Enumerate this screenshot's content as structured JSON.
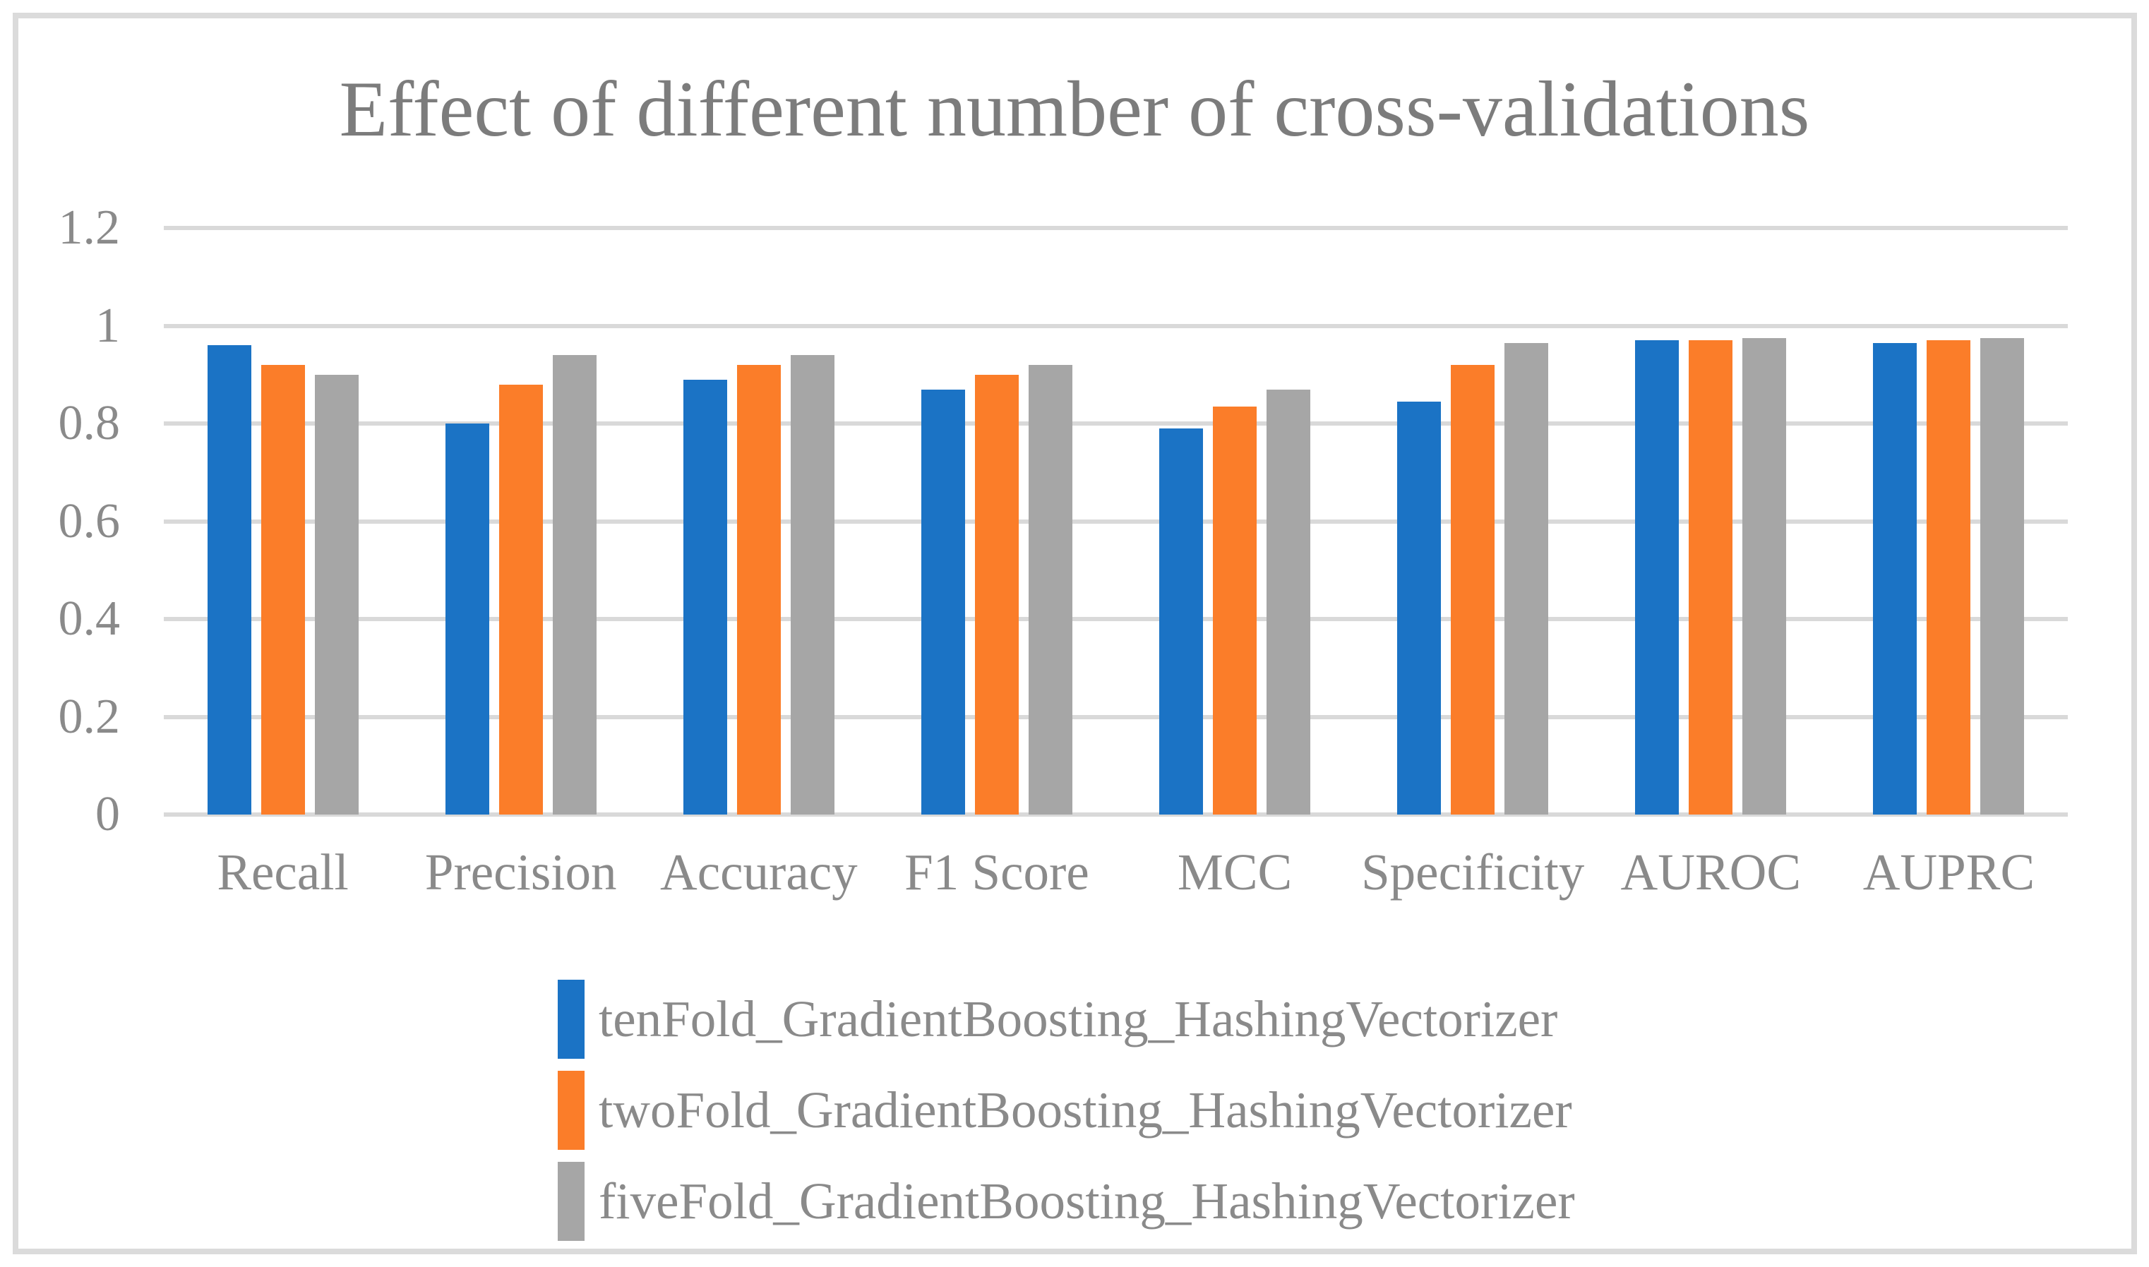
{
  "chart_data": {
    "type": "bar",
    "title": "Effect of different number of cross-validations",
    "categories": [
      "Recall",
      "Precision",
      "Accuracy",
      "F1 Score",
      "MCC",
      "Specificity",
      "AUROC",
      "AUPRC"
    ],
    "series": [
      {
        "name": "tenFold_GradientBoosting_HashingVectorizer",
        "color": "#1B73C5",
        "values": [
          0.96,
          0.8,
          0.89,
          0.87,
          0.79,
          0.845,
          0.97,
          0.965
        ]
      },
      {
        "name": "twoFold_GradientBoosting_HashingVectorizer",
        "color": "#FB7D29",
        "values": [
          0.92,
          0.88,
          0.92,
          0.9,
          0.835,
          0.92,
          0.97,
          0.97
        ]
      },
      {
        "name": "fiveFold_GradientBoosting_HashingVectorizer",
        "color": "#A6A6A6",
        "values": [
          0.9,
          0.94,
          0.94,
          0.92,
          0.87,
          0.965,
          0.975,
          0.975
        ]
      }
    ],
    "y_ticks": [
      "1.2",
      "1",
      "0.8",
      "0.6",
      "0.4",
      "0.2",
      "0"
    ],
    "ylim": [
      0,
      1.2
    ],
    "xlabel": "",
    "ylabel": "",
    "grid": true,
    "legend_position": "bottom-left"
  },
  "style_colors": {
    "gridline": "#D9D9D9",
    "frame_border": "#DBDBDB",
    "title_text": "#7C7C7C",
    "label_text": "#8A8A8A",
    "background": "#ffffff"
  }
}
